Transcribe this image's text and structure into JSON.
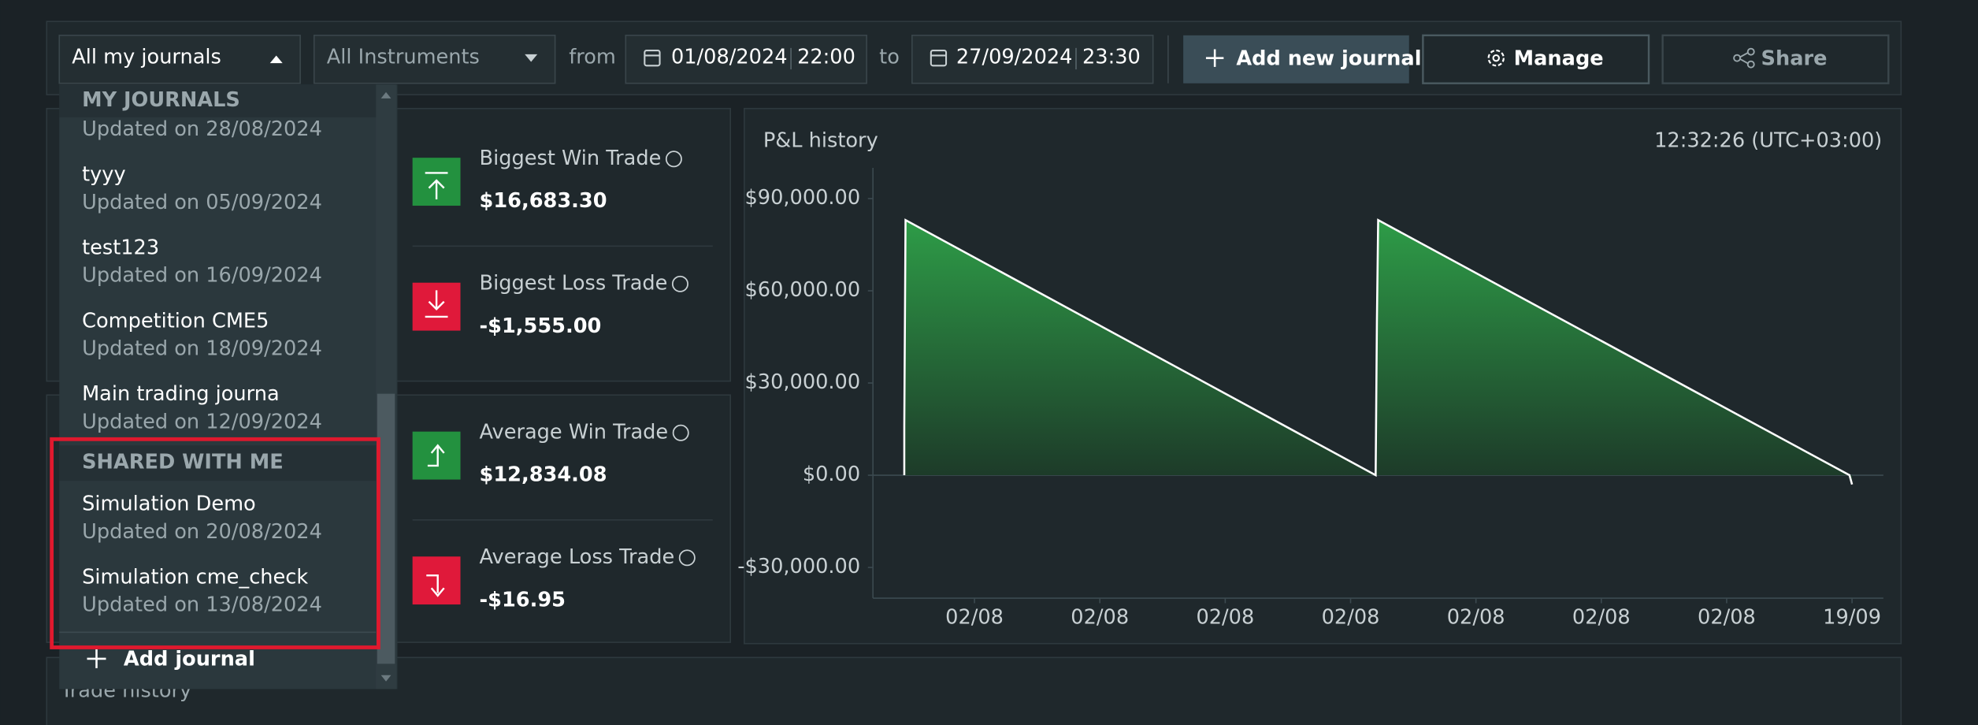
{
  "filters": {
    "journal": "All my journals",
    "instrument": "All Instruments",
    "from_label": "from",
    "from_date": "01/08/2024",
    "from_time": "22:00",
    "to_label": "to",
    "to_date": "27/09/2024",
    "to_time": "23:30"
  },
  "actions": {
    "add_new_journal": "Add new journal",
    "manage": "Manage",
    "share": "Share"
  },
  "stats": [
    {
      "label": "Biggest Win Trade",
      "value": "$16,683.30"
    },
    {
      "label": "Biggest Loss Trade",
      "value": "-$1,555.00"
    },
    {
      "label": "Average Win Trade",
      "value": "$12,834.08"
    },
    {
      "label": "Average Loss Trade",
      "value": "-$16.95"
    }
  ],
  "chart_data": {
    "type": "area",
    "title": "P&L history",
    "time": "12:32:26 (UTC+03:00)",
    "xlim": [
      -0.81,
      7.25
    ],
    "xticks": [
      {
        "value": 0,
        "label": "02/08"
      },
      {
        "value": 1,
        "label": "02/08"
      },
      {
        "value": 2,
        "label": "02/08"
      },
      {
        "value": 3,
        "label": "02/08"
      },
      {
        "value": 4,
        "label": "02/08"
      },
      {
        "value": 5,
        "label": "02/08"
      },
      {
        "value": 6,
        "label": "02/08"
      },
      {
        "value": 7,
        "label": "19/09"
      }
    ],
    "ylim": [
      -40000,
      100000
    ],
    "yticks": [
      {
        "value": 90000,
        "label": "$90,000.00"
      },
      {
        "value": 60000,
        "label": "$60,000.00"
      },
      {
        "value": 30000,
        "label": "$30,000.00"
      },
      {
        "value": 0,
        "label": "$0.00"
      },
      {
        "value": -30000,
        "label": "-$30,000.00"
      }
    ],
    "series": [
      {
        "color": "#2e9e48",
        "x": [
          -0.56,
          -0.56,
          -0.55,
          3.2,
          3.21,
          3.22,
          6.98,
          7.0
        ],
        "values": [
          0,
          16000,
          83000,
          0,
          50000,
          83000,
          0,
          -3000
        ]
      }
    ]
  },
  "trade_history": {
    "title": "Trade history"
  },
  "journal_menu": {
    "sections": [
      {
        "title": "MY JOURNALS",
        "items": [
          {
            "updated": "Updated on 28/08/2024"
          },
          {
            "name": "tyyy",
            "updated": "Updated on 05/09/2024"
          },
          {
            "name": "test123",
            "updated": "Updated on 16/09/2024"
          },
          {
            "name": "Competition CME5",
            "updated": "Updated on 18/09/2024"
          },
          {
            "name": "Main trading journa",
            "updated": "Updated on 12/09/2024"
          }
        ]
      },
      {
        "title": "SHARED WITH ME",
        "items": [
          {
            "name": "Simulation Demo",
            "updated": "Updated on 20/08/2024"
          },
          {
            "name": "Simulation cme_check",
            "updated": "Updated on 13/08/2024"
          }
        ]
      }
    ],
    "add_journal": "Add journal"
  }
}
